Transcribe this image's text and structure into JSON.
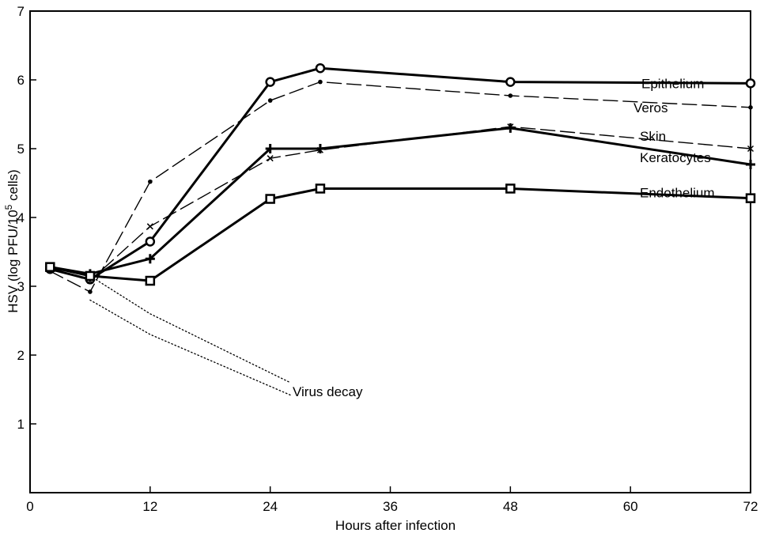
{
  "chart_data": {
    "type": "line",
    "title": "",
    "xlabel": "Hours after infection",
    "ylabel_text": "HSV  (log PFU/10",
    "ylabel_sup": "5",
    "ylabel_tail": " cells)",
    "xlim": [
      0,
      72
    ],
    "ylim": [
      0,
      7
    ],
    "x_ticks": [
      0,
      12,
      24,
      36,
      48,
      60,
      72
    ],
    "y_ticks": [
      1,
      2,
      3,
      4,
      5,
      6,
      7
    ],
    "grid": false,
    "legend": "inline labels at right of each curve",
    "series": [
      {
        "name": "Epithelium",
        "style": "solid-bold",
        "marker": "circle",
        "x": [
          2,
          6,
          12,
          24,
          29,
          48,
          72
        ],
        "y": [
          3.25,
          3.1,
          3.65,
          5.97,
          6.17,
          5.97,
          5.95
        ]
      },
      {
        "name": "Veros",
        "style": "long-dash",
        "marker": "dot",
        "x": [
          2,
          6,
          12,
          24,
          29,
          48,
          72
        ],
        "y": [
          3.22,
          2.92,
          4.52,
          5.7,
          5.97,
          5.77,
          5.6
        ]
      },
      {
        "name": "Skin",
        "style": "long-dash",
        "marker": "cross-x",
        "x": [
          2,
          6,
          12,
          24,
          29,
          48,
          72
        ],
        "y": [
          3.27,
          3.08,
          3.87,
          4.86,
          4.98,
          5.32,
          5.0
        ]
      },
      {
        "name": "Keratocytes",
        "style": "solid-bold",
        "marker": "plus",
        "x": [
          2,
          6,
          12,
          24,
          29,
          48,
          72
        ],
        "y": [
          3.28,
          3.18,
          3.4,
          5.0,
          5.0,
          5.3,
          4.77
        ]
      },
      {
        "name": "Endothelium",
        "style": "solid-bold",
        "marker": "square",
        "x": [
          2,
          6,
          12,
          24,
          29,
          48,
          72
        ],
        "y": [
          3.28,
          3.15,
          3.08,
          4.27,
          4.42,
          4.42,
          4.28
        ]
      },
      {
        "name": "Virus decay",
        "style": "dotted",
        "marker": "none",
        "x": [
          6,
          12,
          26
        ],
        "y": [
          3.15,
          2.6,
          1.6
        ]
      },
      {
        "name": "Virus decay",
        "style": "dotted",
        "marker": "none",
        "x": [
          6,
          12,
          26
        ],
        "y": [
          2.8,
          2.3,
          1.42
        ]
      }
    ]
  }
}
